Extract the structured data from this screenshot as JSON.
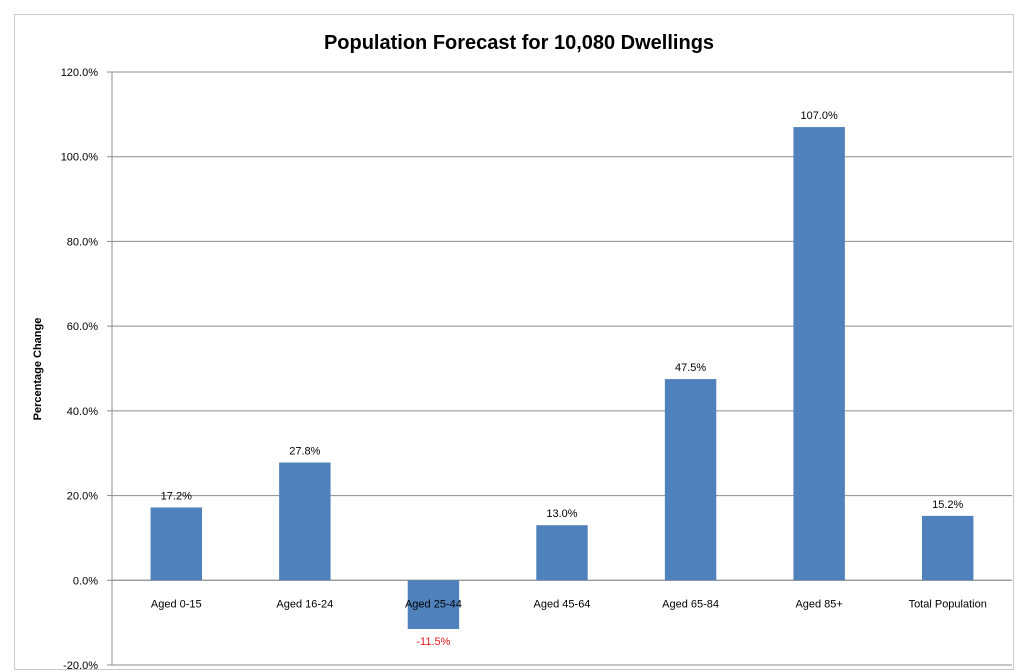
{
  "chart_data": {
    "type": "bar",
    "title": "Population Forecast for 10,080 Dwellings",
    "xlabel": "",
    "ylabel": "Percentage Change",
    "categories": [
      "Aged 0-15",
      "Aged 16-24",
      "Aged 25-44",
      "Aged 45-64",
      "Aged 65-84",
      "Aged 85+",
      "Total Population"
    ],
    "values": [
      17.2,
      27.8,
      -11.5,
      13.0,
      47.5,
      107.0,
      15.2
    ],
    "value_labels": [
      "17.2%",
      "27.8%",
      "-11.5%",
      "13.0%",
      "47.5%",
      "107.0%",
      "15.2%"
    ],
    "ylim": [
      -20,
      120
    ],
    "yticks": [
      -20,
      0,
      20,
      40,
      60,
      80,
      100,
      120
    ],
    "ytick_labels": [
      "-20.0%",
      "0.0%",
      "20.0%",
      "40.0%",
      "60.0%",
      "80.0%",
      "100.0%",
      "120.0%"
    ],
    "grid": true,
    "legend": "none",
    "bar_color": "#4f81bd",
    "negative_label_color": "#e41a1c"
  }
}
